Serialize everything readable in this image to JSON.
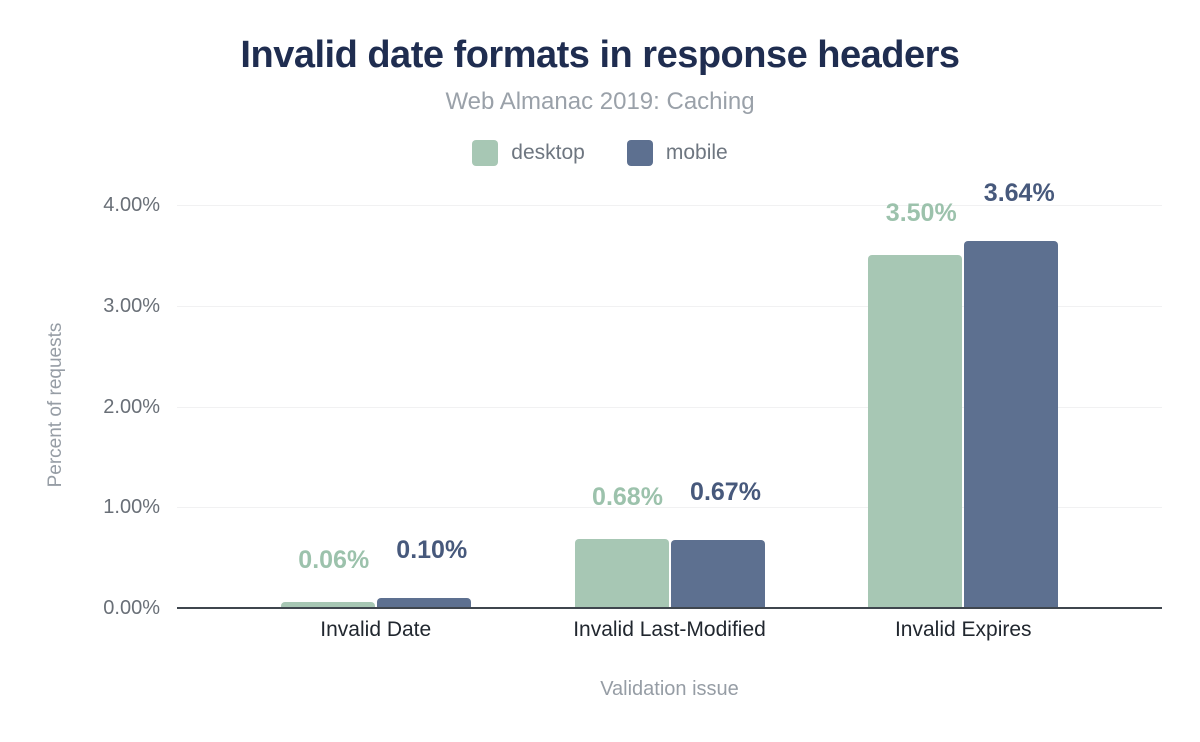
{
  "figure": {
    "title": "Invalid date formats in response headers",
    "subtitle": "Web Almanac 2019: Caching"
  },
  "legend": {
    "items": [
      {
        "label": "desktop",
        "color": "#a7c7b4"
      },
      {
        "label": "mobile",
        "color": "#5d7090"
      }
    ]
  },
  "chart_data": {
    "type": "bar",
    "title": "Invalid date formats in response headers",
    "subtitle": "Web Almanac 2019: Caching",
    "categories": [
      "Invalid Date",
      "Invalid Last-Modified",
      "Invalid Expires"
    ],
    "series": [
      {
        "name": "desktop",
        "values": [
          0.06,
          0.68,
          3.5
        ],
        "labels": [
          "0.06%",
          "0.68%",
          "3.50%"
        ],
        "color": "#a7c7b4",
        "label_color": "#9cc2ac"
      },
      {
        "name": "mobile",
        "values": [
          0.1,
          0.67,
          3.64
        ],
        "labels": [
          "0.10%",
          "0.67%",
          "3.64%"
        ],
        "color": "#5d7090",
        "label_color": "#47597c"
      }
    ],
    "xlabel": "Validation issue",
    "ylabel": "Percent of requests",
    "ylim": [
      0,
      4
    ],
    "yticks": [
      {
        "value": 0,
        "label": "0.00%"
      },
      {
        "value": 1,
        "label": "1.00%"
      },
      {
        "value": 2,
        "label": "2.00%"
      },
      {
        "value": 3,
        "label": "3.00%"
      },
      {
        "value": 4,
        "label": "4.00%"
      }
    ],
    "grid": true,
    "legend_position": "top"
  }
}
